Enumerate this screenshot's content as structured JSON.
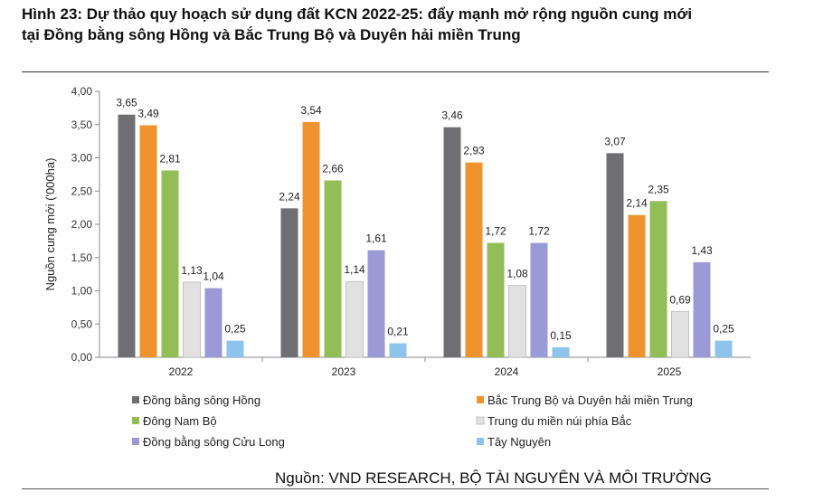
{
  "header": {
    "title_line1": "Hình 23: Dự thảo quy hoạch sử dụng đất KCN 2022-25: đẩy mạnh mở rộng nguồn cung mới",
    "title_line2": "tại Đồng bằng sông Hồng và Bắc Trung Bộ và Duyên hải miền Trung"
  },
  "footer": {
    "source": "Nguồn: VND RESEARCH, BỘ TÀI NGUYÊN VÀ MÔI TRƯỜNG"
  },
  "chart_data": {
    "type": "bar",
    "categories": [
      "2022",
      "2023",
      "2024",
      "2025"
    ],
    "ylabel": "Nguồn cung mới ('000ha)",
    "ylim": [
      0,
      4
    ],
    "yticks": [
      "0,00",
      "0,50",
      "1,00",
      "1,50",
      "2,00",
      "2,50",
      "3,00",
      "3,50",
      "4,00"
    ],
    "grid": false,
    "legend_position": "bottom",
    "series": [
      {
        "name": "Đồng bằng sông Hồng",
        "color": "#6f6f73",
        "values": [
          3.65,
          2.24,
          3.46,
          3.07
        ],
        "labels": [
          "3,65",
          "2,24",
          "3,46",
          "3,07"
        ]
      },
      {
        "name": "Bắc Trung Bộ và Duyên hải miền Trung",
        "color": "#f0932e",
        "values": [
          3.49,
          3.54,
          2.93,
          2.14
        ],
        "labels": [
          "3,49",
          "3,54",
          "2,93",
          "2,14"
        ]
      },
      {
        "name": "Đông Nam Bộ",
        "color": "#93bd57",
        "values": [
          2.81,
          2.66,
          1.72,
          2.35
        ],
        "labels": [
          "2,81",
          "2,66",
          "1,72",
          "2,35"
        ]
      },
      {
        "name": "Trung du miền núi phía Bắc",
        "color": "#e1e1e1",
        "values": [
          1.13,
          1.14,
          1.08,
          0.69
        ],
        "labels": [
          "1,13",
          "1,14",
          "1,08",
          "0,69"
        ]
      },
      {
        "name": "Đồng bằng sông Cửu Long",
        "color": "#9c9ad6",
        "values": [
          1.04,
          1.61,
          1.72,
          1.43
        ],
        "labels": [
          "1,04",
          "1,61",
          "1,72",
          "1,43"
        ]
      },
      {
        "name": "Tây Nguyên",
        "color": "#8ec4ec",
        "values": [
          0.25,
          0.21,
          0.15,
          0.25
        ],
        "labels": [
          "0,25",
          "0,21",
          "0,15",
          "0,25"
        ]
      }
    ]
  }
}
